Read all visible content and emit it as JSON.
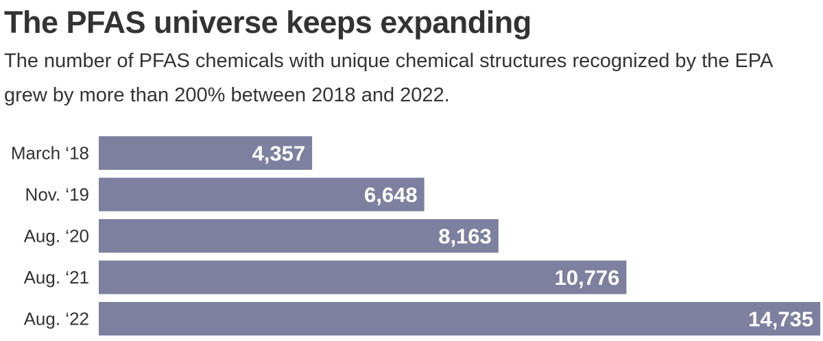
{
  "title": "The PFAS universe keeps expanding",
  "subtitle": "The number of PFAS chemicals with unique chemical structures recognized by the EPA grew by more than 200% between 2018 and 2022.",
  "colors": {
    "bar": "#7d809e",
    "bar_label": "#ffffff",
    "category_label": "#333333"
  },
  "chart_data": {
    "type": "bar",
    "orientation": "horizontal",
    "title": "The PFAS universe keeps expanding",
    "subtitle": "The number of PFAS chemicals with unique chemical structures recognized by the EPA grew by more than 200% between 2018 and 2022.",
    "categories": [
      "March ‘18",
      "Nov. ‘19",
      "Aug. ‘20",
      "Aug. ‘21",
      "Aug. ‘22"
    ],
    "values": [
      4357,
      6648,
      8163,
      10776,
      14735
    ],
    "value_labels": [
      "4,357",
      "6,648",
      "8,163",
      "10,776",
      "14,735"
    ],
    "xlim": [
      0,
      14735
    ],
    "grid": false,
    "legend": "none"
  }
}
